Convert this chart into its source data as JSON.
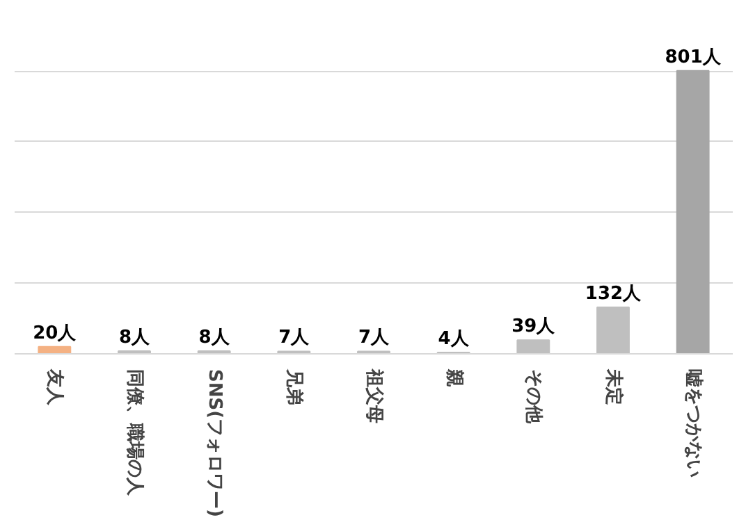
{
  "chart_data": {
    "type": "bar",
    "categories": [
      "友人",
      "同僚、職場の人",
      "SNS(フォロワー)",
      "兄弟",
      "祖父母",
      "親",
      "その他",
      "未定",
      "嘘をつかない"
    ],
    "values": [
      20,
      8,
      8,
      7,
      7,
      4,
      39,
      132,
      801
    ],
    "colors": [
      "#f4b183",
      "#bfbfbf",
      "#bfbfbf",
      "#bfbfbf",
      "#bfbfbf",
      "#bfbfbf",
      "#bfbfbf",
      "#bfbfbf",
      "#a6a6a6"
    ],
    "value_labels": [
      "20人",
      "8人",
      "8人",
      "7人",
      "7人",
      "4人",
      "39人",
      "132人",
      "801人"
    ],
    "grid": "y",
    "tick_labels": "x"
  }
}
